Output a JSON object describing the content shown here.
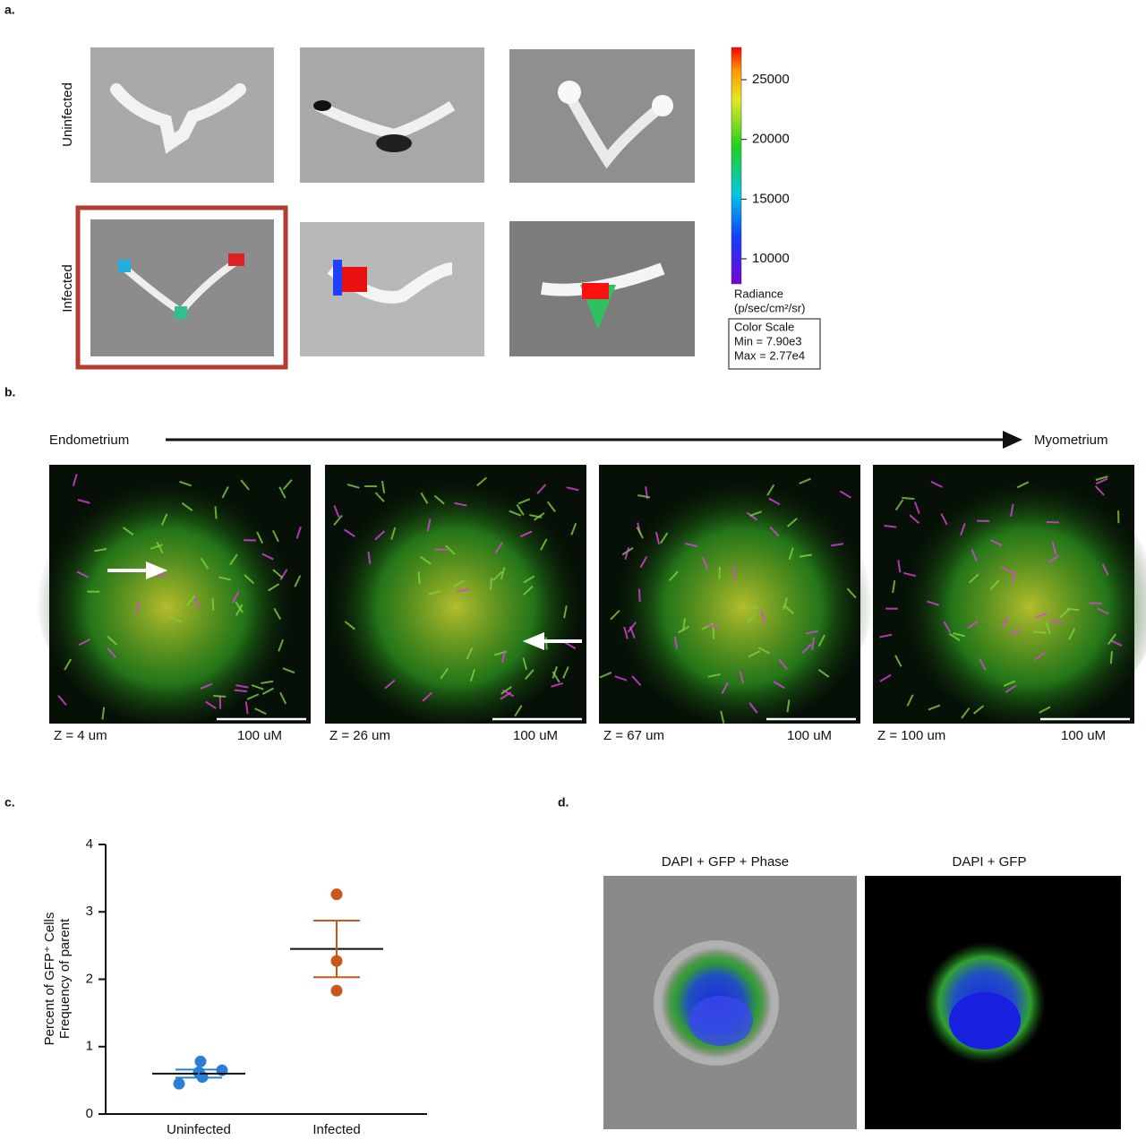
{
  "panel_a": {
    "label": "a.",
    "row_labels": [
      "Uninfected",
      "Infected"
    ],
    "colorbar": {
      "range": [
        7900,
        27700
      ],
      "ticks": [
        10000,
        15000,
        20000,
        25000
      ],
      "unit_label": [
        "Radiance",
        "(p/sec/cm²/sr)"
      ],
      "box": [
        "Color Scale",
        "Min = 7.90e3",
        "Max = 2.77e4"
      ]
    }
  },
  "panel_b": {
    "label": "b.",
    "start": "Endometrium",
    "end": "Myometrium",
    "captions": [
      {
        "z": "Z = 4 um",
        "scale": "100 uM"
      },
      {
        "z": "Z = 26 um",
        "scale": "100 uM"
      },
      {
        "z": "Z = 67 um",
        "scale": "100 uM"
      },
      {
        "z": "Z = 100 um",
        "scale": "100 uM"
      }
    ]
  },
  "chart_data": {
    "type": "scatter",
    "label": "c.",
    "y_label": [
      "Percent of GFP⁺ Cells",
      "Frequency of parent"
    ],
    "categories": [
      "Uninfected",
      "Infected"
    ],
    "colors": [
      "#2a7fd4",
      "#c8581a"
    ],
    "values": [
      [
        0.45,
        0.62,
        0.78,
        0.65,
        0.55
      ],
      [
        1.83,
        2.27,
        3.26
      ]
    ],
    "mean": [
      0.6,
      2.45
    ],
    "sem": [
      0.06,
      0.42
    ],
    "ylim": [
      0,
      4
    ],
    "yticks": [
      0,
      1,
      2,
      3,
      4
    ]
  },
  "panel_d": {
    "label": "d.",
    "titles": [
      "DAPI + GFP + Phase",
      "DAPI + GFP"
    ]
  }
}
